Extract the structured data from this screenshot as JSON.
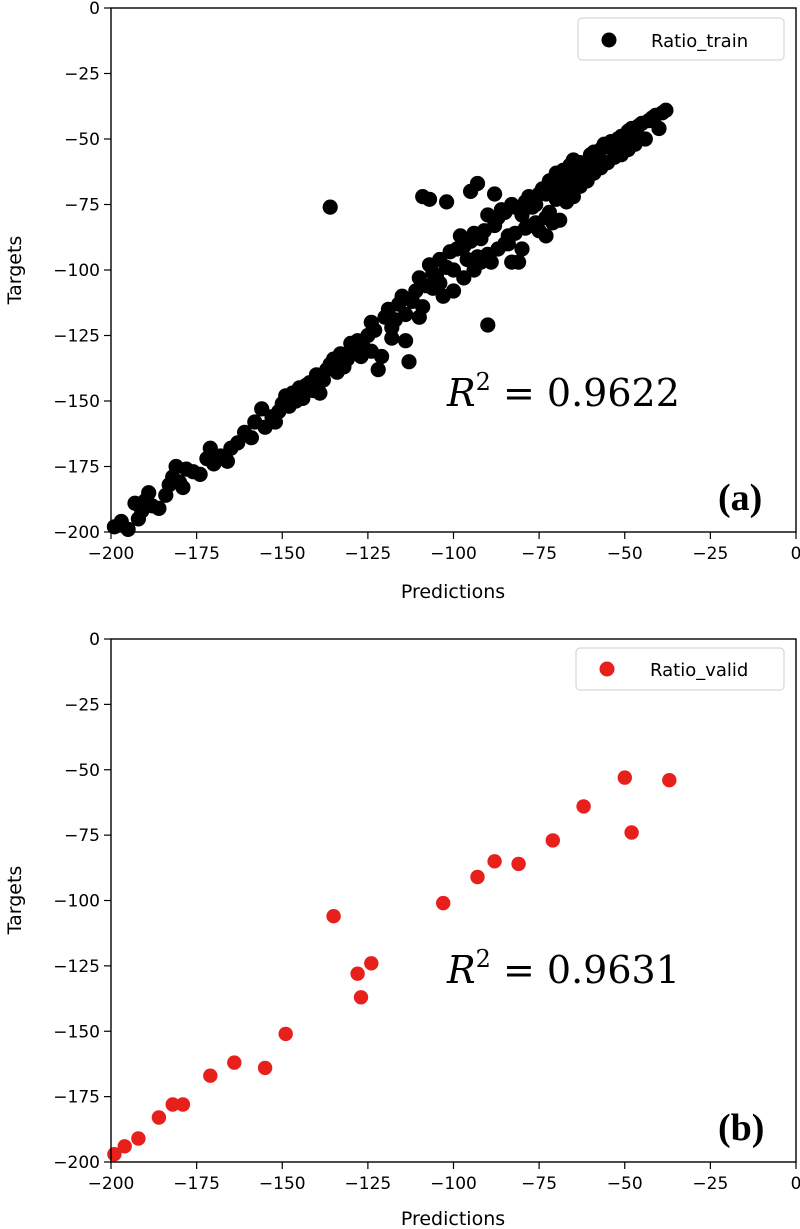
{
  "chart_data": [
    {
      "type": "scatter",
      "panel_label": "(a)",
      "xlabel": "Predictions",
      "ylabel": "Targets",
      "xlim": [
        -200,
        0
      ],
      "ylim": [
        -200,
        0
      ],
      "xticks": [
        -200,
        -175,
        -150,
        -125,
        -100,
        -75,
        -50,
        -25,
        0
      ],
      "yticks": [
        -200,
        -175,
        -150,
        -125,
        -100,
        -75,
        -50,
        -25,
        0
      ],
      "xtick_labels": [
        "−200",
        "−175",
        "−150",
        "−125",
        "−100",
        "−75",
        "−50",
        "−25",
        "0"
      ],
      "ytick_labels": [
        "−200",
        "−175",
        "−150",
        "−125",
        "−100",
        "−75",
        "−50",
        "−25",
        "0"
      ],
      "legend": "Ratio_train",
      "legend_position": "top-right",
      "color": "#000000",
      "r2_label": "R",
      "r2_exponent": "2",
      "r2_value": " = 0.9622",
      "series": [
        {
          "name": "Ratio_train",
          "points": [
            [
              -199,
              -198
            ],
            [
              -197,
              -196
            ],
            [
              -195,
              -199
            ],
            [
              -193,
              -189
            ],
            [
              -192,
              -195
            ],
            [
              -191,
              -192
            ],
            [
              -190,
              -188
            ],
            [
              -189,
              -185
            ],
            [
              -188,
              -190
            ],
            [
              -186,
              -191
            ],
            [
              -184,
              -186
            ],
            [
              -183,
              -182
            ],
            [
              -182,
              -179
            ],
            [
              -181,
              -175
            ],
            [
              -180,
              -181
            ],
            [
              -179,
              -183
            ],
            [
              -178,
              -176
            ],
            [
              -176,
              -177
            ],
            [
              -174,
              -178
            ],
            [
              -172,
              -172
            ],
            [
              -171,
              -168
            ],
            [
              -170,
              -174
            ],
            [
              -168,
              -171
            ],
            [
              -166,
              -173
            ],
            [
              -165,
              -168
            ],
            [
              -163,
              -166
            ],
            [
              -161,
              -162
            ],
            [
              -159,
              -164
            ],
            [
              -158,
              -158
            ],
            [
              -156,
              -153
            ],
            [
              -155,
              -160
            ],
            [
              -153,
              -156
            ],
            [
              -152,
              -158
            ],
            [
              -151,
              -154
            ],
            [
              -150,
              -151
            ],
            [
              -149,
              -148
            ],
            [
              -148,
              -152
            ],
            [
              -147,
              -147
            ],
            [
              -146,
              -150
            ],
            [
              -145,
              -145
            ],
            [
              -144,
              -149
            ],
            [
              -143,
              -144
            ],
            [
              -142,
              -143
            ],
            [
              -141,
              -146
            ],
            [
              -140,
              -140
            ],
            [
              -139,
              -147
            ],
            [
              -138,
              -142
            ],
            [
              -137,
              -138
            ],
            [
              -136,
              -76
            ],
            [
              -136,
              -136
            ],
            [
              -135,
              -134
            ],
            [
              -134,
              -139
            ],
            [
              -133,
              -132
            ],
            [
              -132,
              -137
            ],
            [
              -130,
              -128
            ],
            [
              -129,
              -131
            ],
            [
              -128,
              -127
            ],
            [
              -127,
              -133
            ],
            [
              -126,
              -130
            ],
            [
              -125,
              -125
            ],
            [
              -124,
              -120
            ],
            [
              -123,
              -123
            ],
            [
              -122,
              -138
            ],
            [
              -121,
              -133
            ],
            [
              -120,
              -118
            ],
            [
              -119,
              -115
            ],
            [
              -118,
              -122
            ],
            [
              -117,
              -119
            ],
            [
              -116,
              -113
            ],
            [
              -115,
              -110
            ],
            [
              -114,
              -117
            ],
            [
              -113,
              -135
            ],
            [
              -112,
              -112
            ],
            [
              -111,
              -108
            ],
            [
              -110,
              -103
            ],
            [
              -109,
              -114
            ],
            [
              -108,
              -106
            ],
            [
              -107,
              -98
            ],
            [
              -106,
              -101
            ],
            [
              -105,
              -102
            ],
            [
              -104,
              -96
            ],
            [
              -103,
              -110
            ],
            [
              -102,
              -99
            ],
            [
              -101,
              -93
            ],
            [
              -100,
              -100
            ],
            [
              -99,
              -92
            ],
            [
              -98,
              -87
            ],
            [
              -97,
              -91
            ],
            [
              -96,
              -96
            ],
            [
              -95,
              -89
            ],
            [
              -94,
              -86
            ],
            [
              -93,
              -95
            ],
            [
              -92,
              -88
            ],
            [
              -91,
              -85
            ],
            [
              -90,
              -121
            ],
            [
              -89,
              -97
            ],
            [
              -88,
              -83
            ],
            [
              -87,
              -80
            ],
            [
              -86,
              -77
            ],
            [
              -85,
              -78
            ],
            [
              -84,
              -87
            ],
            [
              -83,
              -75
            ],
            [
              -82,
              -76
            ],
            [
              -81,
              -97
            ],
            [
              -80,
              -79
            ],
            [
              -79,
              -74
            ],
            [
              -78,
              -72
            ],
            [
              -77,
              -76
            ],
            [
              -76,
              -75
            ],
            [
              -75,
              -71
            ],
            [
              -74,
              -69
            ],
            [
              -73,
              -71
            ],
            [
              -72,
              -66
            ],
            [
              -71,
              -68
            ],
            [
              -70,
              -63
            ],
            [
              -69,
              -65
            ],
            [
              -68,
              -62
            ],
            [
              -67,
              -64
            ],
            [
              -66,
              -60
            ],
            [
              -65,
              -58
            ],
            [
              -64,
              -61
            ],
            [
              -63,
              -59
            ],
            [
              -62,
              -60
            ],
            [
              -61,
              -62
            ],
            [
              -60,
              -56
            ],
            [
              -59,
              -55
            ],
            [
              -58,
              -57
            ],
            [
              -57,
              -54
            ],
            [
              -56,
              -52
            ],
            [
              -55,
              -53
            ],
            [
              -54,
              -51
            ],
            [
              -53,
              -55
            ],
            [
              -52,
              -50
            ],
            [
              -51,
              -49
            ],
            [
              -50,
              -52
            ],
            [
              -49,
              -47
            ],
            [
              -48,
              -46
            ],
            [
              -47,
              -48
            ],
            [
              -46,
              -45
            ],
            [
              -45,
              -44
            ],
            [
              -44,
              -50
            ],
            [
              -43,
              -43
            ],
            [
              -42,
              -42
            ],
            [
              -41,
              -41
            ],
            [
              -40,
              -46
            ],
            [
              -39,
              -40
            ],
            [
              -38,
              -39
            ],
            [
              -109,
              -72
            ],
            [
              -107,
              -73
            ],
            [
              -102,
              -74
            ],
            [
              -95,
              -70
            ],
            [
              -93,
              -67
            ],
            [
              -90,
              -79
            ],
            [
              -88,
              -71
            ],
            [
              -85,
              -90
            ],
            [
              -83,
              -97
            ],
            [
              -80,
              -92
            ],
            [
              -77,
              -83
            ],
            [
              -75,
              -85
            ],
            [
              -73,
              -80
            ],
            [
              -72,
              -78
            ],
            [
              -70,
              -73
            ],
            [
              -68,
              -69
            ],
            [
              -66,
              -67
            ],
            [
              -64,
              -65
            ],
            [
              -62,
              -63
            ],
            [
              -60,
              -61
            ],
            [
              -131,
              -134
            ],
            [
              -124,
              -131
            ],
            [
              -118,
              -126
            ],
            [
              -114,
              -127
            ],
            [
              -110,
              -118
            ],
            [
              -106,
              -107
            ],
            [
              -104,
              -105
            ],
            [
              -100,
              -108
            ],
            [
              -97,
              -103
            ],
            [
              -94,
              -100
            ],
            [
              -92,
              -97
            ],
            [
              -90,
              -94
            ],
            [
              -87,
              -92
            ],
            [
              -84,
              -90
            ],
            [
              -82,
              -86
            ],
            [
              -79,
              -84
            ],
            [
              -76,
              -82
            ],
            [
              -73,
              -87
            ],
            [
              -71,
              -82
            ],
            [
              -69,
              -81
            ],
            [
              -67,
              -74
            ],
            [
              -65,
              -72
            ],
            [
              -63,
              -68
            ],
            [
              -61,
              -66
            ],
            [
              -59,
              -63
            ],
            [
              -57,
              -61
            ],
            [
              -55,
              -59
            ],
            [
              -53,
              -57
            ],
            [
              -51,
              -56
            ],
            [
              -49,
              -54
            ],
            [
              -47,
              -52
            ]
          ]
        }
      ]
    },
    {
      "type": "scatter",
      "panel_label": "(b)",
      "xlabel": "Predictions",
      "ylabel": "Targets",
      "xlim": [
        -200,
        0
      ],
      "ylim": [
        -200,
        0
      ],
      "xticks": [
        -200,
        -175,
        -150,
        -125,
        -100,
        -75,
        -50,
        -25,
        0
      ],
      "yticks": [
        -200,
        -175,
        -150,
        -125,
        -100,
        -75,
        -50,
        -25,
        0
      ],
      "xtick_labels": [
        "−200",
        "−175",
        "−150",
        "−125",
        "−100",
        "−75",
        "−50",
        "−25",
        "0"
      ],
      "ytick_labels": [
        "−200",
        "−175",
        "−150",
        "−125",
        "−100",
        "−75",
        "−50",
        "−25",
        "0"
      ],
      "legend": "Ratio_valid",
      "legend_position": "top-right",
      "color": "#e8201c",
      "r2_label": "R",
      "r2_exponent": "2",
      "r2_value": " = 0.9631",
      "series": [
        {
          "name": "Ratio_valid",
          "points": [
            [
              -199,
              -197
            ],
            [
              -196,
              -194
            ],
            [
              -192,
              -191
            ],
            [
              -186,
              -183
            ],
            [
              -182,
              -178
            ],
            [
              -179,
              -178
            ],
            [
              -171,
              -167
            ],
            [
              -164,
              -162
            ],
            [
              -155,
              -164
            ],
            [
              -149,
              -151
            ],
            [
              -135,
              -106
            ],
            [
              -128,
              -128
            ],
            [
              -127,
              -137
            ],
            [
              -124,
              -124
            ],
            [
              -103,
              -101
            ],
            [
              -93,
              -91
            ],
            [
              -88,
              -85
            ],
            [
              -81,
              -86
            ],
            [
              -71,
              -77
            ],
            [
              -62,
              -64
            ],
            [
              -50,
              -53
            ],
            [
              -48,
              -74
            ],
            [
              -37,
              -54
            ]
          ]
        }
      ]
    }
  ]
}
